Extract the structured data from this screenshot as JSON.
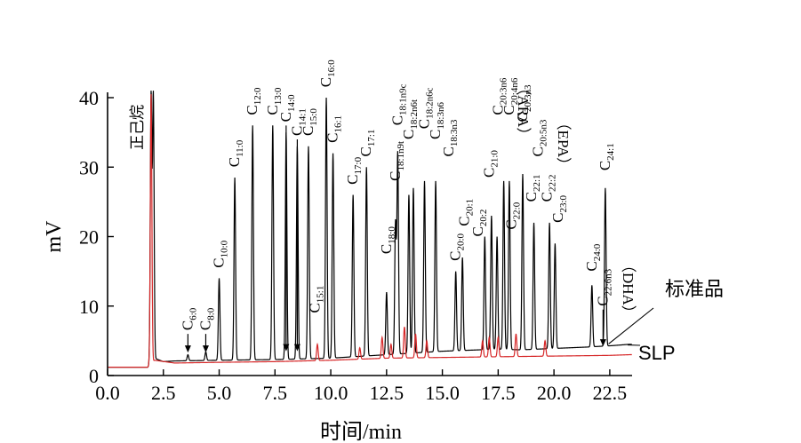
{
  "chart_data": {
    "type": "line",
    "xlabel": "时间/min",
    "ylabel": "mV",
    "xlim": [
      0,
      23.5
    ],
    "ylim": [
      0,
      40
    ],
    "x_ticks": [
      "0.0",
      "2.5",
      "5.0",
      "7.5",
      "10.0",
      "12.5",
      "15.0",
      "17.5",
      "20.0",
      "22.5"
    ],
    "y_ticks": [
      "0",
      "10",
      "20",
      "30",
      "40"
    ],
    "grid": false,
    "solvent_label": "正己烷",
    "series": [
      {
        "name": "标准品",
        "color": "#000000",
        "baseline": [
          {
            "x": 0,
            "y": 1.2
          },
          {
            "x": 1.8,
            "y": 1.2
          },
          {
            "x": 2.1,
            "y": 2.5
          },
          {
            "x": 2.5,
            "y": 2.0
          },
          {
            "x": 3.0,
            "y": 2.1
          },
          {
            "x": 5.0,
            "y": 2.2
          },
          {
            "x": 7.5,
            "y": 2.3
          },
          {
            "x": 10.0,
            "y": 2.5
          },
          {
            "x": 12.5,
            "y": 3.0
          },
          {
            "x": 15.0,
            "y": 3.5
          },
          {
            "x": 17.5,
            "y": 3.8
          },
          {
            "x": 18.5,
            "y": 3.7
          },
          {
            "x": 20.0,
            "y": 3.9
          },
          {
            "x": 21.5,
            "y": 4.1
          },
          {
            "x": 22.6,
            "y": 4.3
          },
          {
            "x": 23.4,
            "y": 4.5
          }
        ],
        "peaks": [
          {
            "x": 1.95,
            "y": 40.5
          },
          {
            "x": 2.05,
            "y": 40.5
          },
          {
            "x": 3.6,
            "y": 3.0
          },
          {
            "x": 4.4,
            "y": 3.4
          },
          {
            "x": 5.0,
            "y": 14.0
          },
          {
            "x": 5.7,
            "y": 28.5
          },
          {
            "x": 6.5,
            "y": 36.0
          },
          {
            "x": 7.4,
            "y": 36.0
          },
          {
            "x": 8.0,
            "y": 35.0
          },
          {
            "x": 8.5,
            "y": 33.0
          },
          {
            "x": 9.0,
            "y": 33.0
          },
          {
            "x": 9.8,
            "y": 40.0
          },
          {
            "x": 10.1,
            "y": 32.0
          },
          {
            "x": 11.0,
            "y": 26.0
          },
          {
            "x": 11.6,
            "y": 30.0
          },
          {
            "x": 12.5,
            "y": 12.0
          },
          {
            "x": 12.9,
            "y": 22.0
          },
          {
            "x": 13.0,
            "y": 32.0
          },
          {
            "x": 13.5,
            "y": 26.0
          },
          {
            "x": 13.7,
            "y": 27.0
          },
          {
            "x": 14.2,
            "y": 28.0
          },
          {
            "x": 14.7,
            "y": 28.0
          },
          {
            "x": 15.6,
            "y": 15.0
          },
          {
            "x": 15.9,
            "y": 17.0
          },
          {
            "x": 16.9,
            "y": 20.0
          },
          {
            "x": 17.2,
            "y": 23.0
          },
          {
            "x": 17.45,
            "y": 20.0
          },
          {
            "x": 17.75,
            "y": 28.0
          },
          {
            "x": 18.0,
            "y": 28.0
          },
          {
            "x": 18.6,
            "y": 29.0
          },
          {
            "x": 19.1,
            "y": 22.0
          },
          {
            "x": 19.8,
            "y": 22.0
          },
          {
            "x": 20.05,
            "y": 19.0
          },
          {
            "x": 21.7,
            "y": 13.0
          },
          {
            "x": 22.3,
            "y": 27.0
          }
        ]
      },
      {
        "name": "SLP",
        "color": "#d62728",
        "baseline": [
          {
            "x": 0,
            "y": 1.2
          },
          {
            "x": 1.8,
            "y": 1.2
          },
          {
            "x": 2.1,
            "y": 2.2
          },
          {
            "x": 3.0,
            "y": 1.8
          },
          {
            "x": 5.0,
            "y": 1.9
          },
          {
            "x": 7.5,
            "y": 2.0
          },
          {
            "x": 10.0,
            "y": 2.2
          },
          {
            "x": 12.5,
            "y": 2.5
          },
          {
            "x": 15.0,
            "y": 2.6
          },
          {
            "x": 17.5,
            "y": 2.7
          },
          {
            "x": 20.0,
            "y": 2.8
          },
          {
            "x": 22.5,
            "y": 2.9
          },
          {
            "x": 23.4,
            "y": 3.0
          }
        ],
        "peaks": [
          {
            "x": 1.95,
            "y": 40.5
          },
          {
            "x": 9.4,
            "y": 4.5
          },
          {
            "x": 11.3,
            "y": 4.0
          },
          {
            "x": 12.3,
            "y": 5.5
          },
          {
            "x": 12.7,
            "y": 4.5
          },
          {
            "x": 13.3,
            "y": 7.0
          },
          {
            "x": 13.8,
            "y": 6.0
          },
          {
            "x": 14.3,
            "y": 5.0
          },
          {
            "x": 16.8,
            "y": 5.0
          },
          {
            "x": 17.1,
            "y": 5.5
          },
          {
            "x": 17.5,
            "y": 5.5
          },
          {
            "x": 18.3,
            "y": 6.0
          },
          {
            "x": 19.6,
            "y": 5.0
          }
        ]
      }
    ],
    "peak_labels": [
      {
        "text": "C6:0",
        "x": 3.6,
        "y": 6.5,
        "arrow_y": 3.3
      },
      {
        "text": "C8:0",
        "x": 4.4,
        "y": 6.5,
        "arrow_y": 3.3
      },
      {
        "text": "C10:0",
        "x": 5.0,
        "y": 15.5
      },
      {
        "text": "C11:0",
        "x": 5.7,
        "y": 30.0
      },
      {
        "text": "C12:0",
        "x": 6.5,
        "y": 37.5
      },
      {
        "text": "C13:0",
        "x": 7.4,
        "y": 37.5
      },
      {
        "text": "C14:0",
        "x": 8.0,
        "y": 36.5,
        "arrow_y": 3.5
      },
      {
        "text": "C14:1",
        "x": 8.5,
        "y": 34.5,
        "arrow_y": 3.5
      },
      {
        "text": "C15:0",
        "x": 9.0,
        "y": 34.5
      },
      {
        "text": "C15:1",
        "x": 9.3,
        "y": 9.0
      },
      {
        "text": "C16:0",
        "x": 9.8,
        "y": 41.5
      },
      {
        "text": "C16:1",
        "x": 10.1,
        "y": 33.5
      },
      {
        "text": "C17:0",
        "x": 11.0,
        "y": 27.5
      },
      {
        "text": "C17:1",
        "x": 11.6,
        "y": 31.5
      },
      {
        "text": "C18:0",
        "x": 12.5,
        "y": 17.5
      },
      {
        "text": "C18:1n9t",
        "x": 12.9,
        "y": 28.0
      },
      {
        "text": "C18:1n9c",
        "x": 13.0,
        "y": 36.0
      },
      {
        "text": "C18:2n6t",
        "x": 13.5,
        "y": 34.0
      },
      {
        "text": "C18:2n6c",
        "x": 14.2,
        "y": 35.5
      },
      {
        "text": "C18:3n6",
        "x": 14.7,
        "y": 34.0
      },
      {
        "text": "C18:3n3",
        "x": 15.3,
        "y": 31.5
      },
      {
        "text": "C20:0",
        "x": 15.6,
        "y": 16.5
      },
      {
        "text": "C20:1",
        "x": 16.0,
        "y": 21.5
      },
      {
        "text": "C20:2",
        "x": 16.6,
        "y": 20.0
      },
      {
        "text": "C21:0",
        "x": 17.1,
        "y": 28.5
      },
      {
        "text": "C20:3n6",
        "x": 17.5,
        "y": 37.5
      },
      {
        "text": "C20:4n6",
        "x": 18.0,
        "y": 37.5
      },
      {
        "text": "C20:3n3",
        "x": 18.6,
        "y": 36.5
      },
      {
        "text": "C20:5n3",
        "x": 19.3,
        "y": 31.5
      },
      {
        "text": "C22:0",
        "x": 18.1,
        "y": 21.0
      },
      {
        "text": "C22:1",
        "x": 19.0,
        "y": 25.0
      },
      {
        "text": "C22:2",
        "x": 19.7,
        "y": 25.0
      },
      {
        "text": "C23:0",
        "x": 20.2,
        "y": 22.0
      },
      {
        "text": "C24:0",
        "x": 21.7,
        "y": 15.0
      },
      {
        "text": "C24:1",
        "x": 22.3,
        "y": 29.5
      },
      {
        "text": "C22:6n3",
        "x": 22.2,
        "y": 10.0,
        "arrow_y": 4.2
      }
    ],
    "extra_annotations": [
      {
        "text": "（ARA）",
        "x": 18.2,
        "y": 42.5
      },
      {
        "text": "（EPA）",
        "x": 20.0,
        "y": 37.5
      },
      {
        "text": "（DHA）",
        "x": 22.9,
        "y": 17.0
      }
    ],
    "legend": [
      {
        "name": "标准品",
        "position": "right"
      },
      {
        "name": "SLP",
        "position": "right"
      }
    ]
  }
}
